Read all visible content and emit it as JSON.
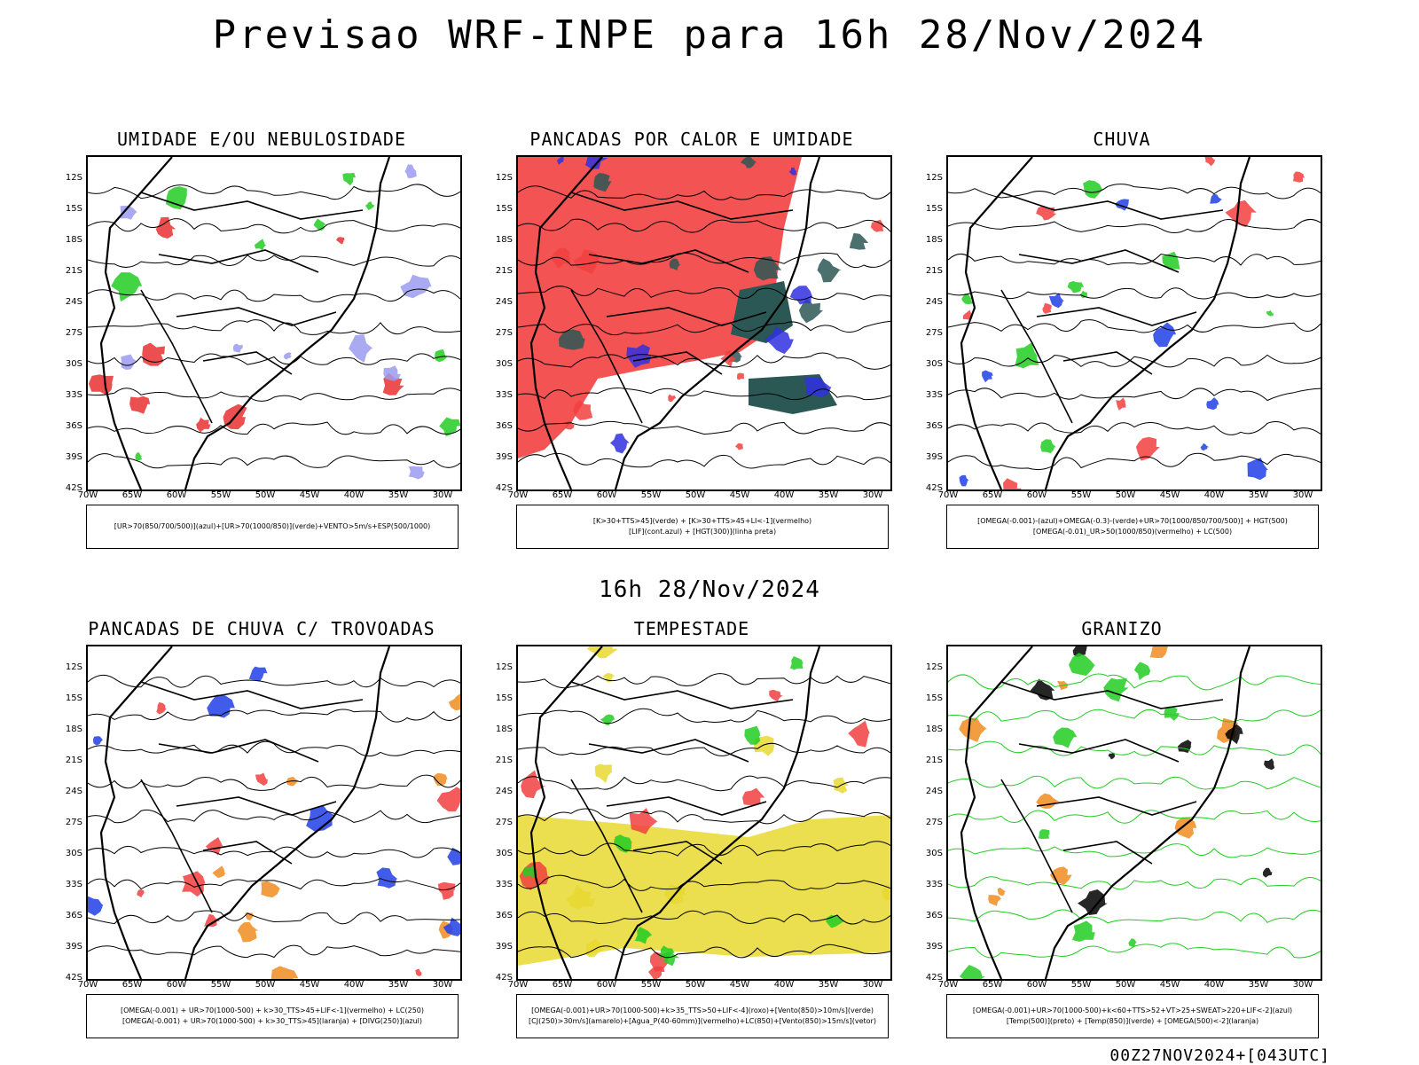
{
  "header": {
    "title": "Previsao WRF-INPE  para 16h 28/Nov/2024",
    "mid_title": "16h 28/Nov/2024",
    "footer": "00Z27NOV2024+[043UTC]"
  },
  "axes": {
    "lat_labels": [
      "12S",
      "15S",
      "18S",
      "21S",
      "24S",
      "27S",
      "30S",
      "33S",
      "36S",
      "39S",
      "42S"
    ],
    "lon_labels": [
      "70W",
      "65W",
      "60W",
      "55W",
      "50W",
      "45W",
      "40W",
      "35W",
      "30W"
    ]
  },
  "panels": [
    {
      "title": "UMIDADE E/OU NEBULOSIDADE",
      "legend": [
        "[UR>70(850/700/500)](azul)+[UR>70(1000/850)](verde)+VENTO>5m/s+ESP(500/1000)"
      ],
      "colors": {
        "primary": "#9b9bf0",
        "secondary": "#22cc22",
        "accent": "#e83030"
      }
    },
    {
      "title": "PANCADAS POR CALOR E UMIDADE",
      "legend": [
        "[K>30+TTS>45](verde) + [K>30+TTS>45+LI<-1](vermelho)",
        "[LIF](cont.azul) + [HGT(300)](linha preta)"
      ],
      "colors": {
        "primary": "#f24040",
        "secondary": "#2b5755",
        "accent": "#3030e0"
      }
    },
    {
      "title": "CHUVA",
      "legend": [
        "[OMEGA(-0.001)-(azul)+OMEGA(-0.3)-(verde)+UR>70(1000/850/700/500)] + HGT(500)",
        "[OMEGA(-0.01)_UR>50(1000/850)(vermelho) + LC(500)"
      ],
      "colors": {
        "primary": "#f24040",
        "secondary": "#2040e8",
        "accent": "#22cc22"
      }
    },
    {
      "title": "PANCADAS DE CHUVA C/ TROVOADAS",
      "legend": [
        "[OMEGA(-0.001) + UR>70(1000-500) + k>30_TTS>45+LIF<-1](vermelho) + LC(250)",
        "[OMEGA(-0.001) + UR>70(1000-500) + k>30_TTS>45](laranja) + [DIVG(250)](azul)"
      ],
      "colors": {
        "primary": "#f24040",
        "secondary": "#f08c20",
        "accent": "#2040e8"
      }
    },
    {
      "title": "TEMPESTADE",
      "legend": [
        "[OMEGA(-0.001)+UR>70(1000-500)+k>35_TTS>50+LIF<-4](roxo)+[Vento(850)>10m/s](verde)",
        "[CJ(250)>30m/s](amarelo)+[Agua_P(40-60mm)](vermelho)+LC(850)+[Vento(850)>15m/s](vetor)"
      ],
      "colors": {
        "primary": "#e8d830",
        "secondary": "#22cc22",
        "accent": "#f04040"
      }
    },
    {
      "title": "GRANIZO",
      "legend": [
        "[OMEGA(-0.001)+UR>70(1000-500)+k<60+TTS>52+VT>25+SWEAT>220+LIF<-2](azul)",
        "[Temp(500)](preto) + [Temp(850)](verde) + [OMEGA(500)<-2](laranja)"
      ],
      "colors": {
        "primary": "#22cc22",
        "secondary": "#f08c20",
        "accent": "#000000"
      }
    }
  ]
}
